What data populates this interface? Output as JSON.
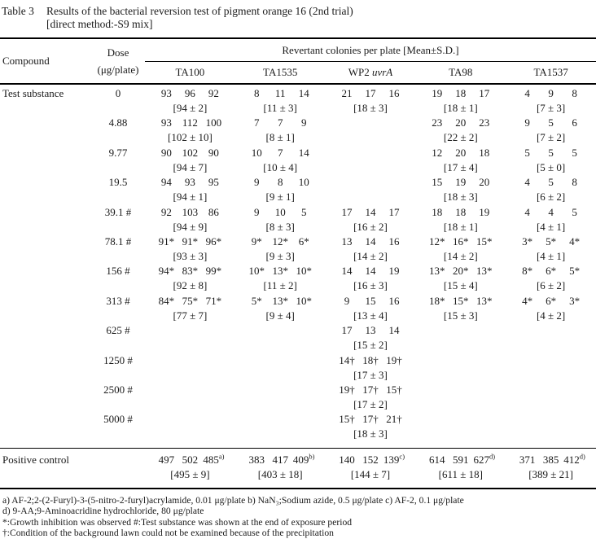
{
  "title": {
    "label": "Table 3",
    "line1": "Results of the bacterial reversion test of pigment orange 16 (2nd trial)",
    "line2": "[direct method:-S9 mix]"
  },
  "table": {
    "compound_header": "Compound",
    "dose_header_line1": "Dose",
    "dose_header_line2": "(μg/plate)",
    "span_header": "Revertant colonies per plate [Mean±S.D.]",
    "strains": [
      {
        "id": "ta100",
        "text": "TA100"
      },
      {
        "id": "ta1535",
        "text": "TA1535"
      },
      {
        "id": "wp2-uvra",
        "text": "WP2 ",
        "italic": "uvrA"
      },
      {
        "id": "ta98",
        "text": "TA98"
      },
      {
        "id": "ta1537",
        "text": "TA1537"
      }
    ],
    "rows": [
      {
        "compound": "Test substance",
        "dose": "0",
        "cells": [
          {
            "values": [
              "93",
              "96",
              "92"
            ],
            "mean": "[94 ± 2]"
          },
          {
            "values": [
              "8",
              "11",
              "14"
            ],
            "mean": "[11 ± 3]"
          },
          {
            "values": [
              "21",
              "17",
              "16"
            ],
            "mean": "[18 ± 3]"
          },
          {
            "values": [
              "19",
              "18",
              "17"
            ],
            "mean": "[18 ± 1]"
          },
          {
            "values": [
              "4",
              "9",
              "8"
            ],
            "mean": "[7 ± 3]"
          }
        ]
      },
      {
        "compound": "",
        "dose": "4.88",
        "cells": [
          {
            "values": [
              "93",
              "112",
              "100"
            ],
            "mean": "[102 ± 10]"
          },
          {
            "values": [
              "7",
              "7",
              "9"
            ],
            "mean": "[8 ± 1]"
          },
          null,
          {
            "values": [
              "23",
              "20",
              "23"
            ],
            "mean": "[22 ± 2]"
          },
          {
            "values": [
              "9",
              "5",
              "6"
            ],
            "mean": "[7 ± 2]"
          }
        ]
      },
      {
        "compound": "",
        "dose": "9.77",
        "cells": [
          {
            "values": [
              "90",
              "102",
              "90"
            ],
            "mean": "[94 ± 7]"
          },
          {
            "values": [
              "10",
              "7",
              "14"
            ],
            "mean": "[10 ± 4]"
          },
          null,
          {
            "values": [
              "12",
              "20",
              "18"
            ],
            "mean": "[17 ± 4]"
          },
          {
            "values": [
              "5",
              "5",
              "5"
            ],
            "mean": "[5 ± 0]"
          }
        ]
      },
      {
        "compound": "",
        "dose": "19.5",
        "cells": [
          {
            "values": [
              "94",
              "93",
              "95"
            ],
            "mean": "[94 ± 1]"
          },
          {
            "values": [
              "9",
              "8",
              "10"
            ],
            "mean": "[9 ± 1]"
          },
          null,
          {
            "values": [
              "15",
              "19",
              "20"
            ],
            "mean": "[18 ± 3]"
          },
          {
            "values": [
              "4",
              "5",
              "8"
            ],
            "mean": "[6 ± 2]"
          }
        ]
      },
      {
        "compound": "",
        "dose": "39.1 #",
        "cells": [
          {
            "values": [
              "92",
              "103",
              "86"
            ],
            "mean": "[94 ± 9]"
          },
          {
            "values": [
              "9",
              "10",
              "5"
            ],
            "mean": "[8 ± 3]"
          },
          {
            "values": [
              "17",
              "14",
              "17"
            ],
            "mean": "[16 ± 2]"
          },
          {
            "values": [
              "18",
              "18",
              "19"
            ],
            "mean": "[18 ± 1]"
          },
          {
            "values": [
              "4",
              "4",
              "5"
            ],
            "mean": "[4 ± 1]"
          }
        ]
      },
      {
        "compound": "",
        "dose": "78.1 #",
        "cells": [
          {
            "values": [
              "91*",
              "91*",
              "96*"
            ],
            "mean": "[93 ± 3]"
          },
          {
            "values": [
              "9*",
              "12*",
              "6*"
            ],
            "mean": "[9 ± 3]"
          },
          {
            "values": [
              "13",
              "14",
              "16"
            ],
            "mean": "[14 ± 2]"
          },
          {
            "values": [
              "12*",
              "16*",
              "15*"
            ],
            "mean": "[14 ± 2]"
          },
          {
            "values": [
              "3*",
              "5*",
              "4*"
            ],
            "mean": "[4 ± 1]"
          }
        ]
      },
      {
        "compound": "",
        "dose": "156 #",
        "cells": [
          {
            "values": [
              "94*",
              "83*",
              "99*"
            ],
            "mean": "[92 ± 8]"
          },
          {
            "values": [
              "10*",
              "13*",
              "10*"
            ],
            "mean": "[11 ± 2]"
          },
          {
            "values": [
              "14",
              "14",
              "19"
            ],
            "mean": "[16 ± 3]"
          },
          {
            "values": [
              "13*",
              "20*",
              "13*"
            ],
            "mean": "[15 ± 4]"
          },
          {
            "values": [
              "8*",
              "6*",
              "5*"
            ],
            "mean": "[6 ± 2]"
          }
        ]
      },
      {
        "compound": "",
        "dose": "313 #",
        "cells": [
          {
            "values": [
              "84*",
              "75*",
              "71*"
            ],
            "mean": "[77 ± 7]"
          },
          {
            "values": [
              "5*",
              "13*",
              "10*"
            ],
            "mean": "[9 ± 4]"
          },
          {
            "values": [
              "9",
              "15",
              "16"
            ],
            "mean": "[13 ± 4]"
          },
          {
            "values": [
              "18*",
              "15*",
              "13*"
            ],
            "mean": "[15 ± 3]"
          },
          {
            "values": [
              "4*",
              "6*",
              "3*"
            ],
            "mean": "[4 ± 2]"
          }
        ]
      },
      {
        "compound": "",
        "dose": "625 #",
        "cells": [
          null,
          null,
          {
            "values": [
              "17",
              "13",
              "14"
            ],
            "mean": "[15 ± 2]"
          },
          null,
          null
        ]
      },
      {
        "compound": "",
        "dose": "1250 #",
        "cells": [
          null,
          null,
          {
            "values": [
              "14†",
              "18†",
              "19†"
            ],
            "mean": "[17 ± 3]"
          },
          null,
          null
        ]
      },
      {
        "compound": "",
        "dose": "2500 #",
        "cells": [
          null,
          null,
          {
            "values": [
              "19†",
              "17†",
              "15†"
            ],
            "mean": "[17 ± 2]"
          },
          null,
          null
        ]
      },
      {
        "compound": "",
        "dose": "5000 #",
        "cells": [
          null,
          null,
          {
            "values": [
              "15†",
              "17†",
              "21†"
            ],
            "mean": "[18 ± 3]"
          },
          null,
          null
        ]
      }
    ],
    "positive_control": {
      "compound": "Positive control",
      "dose": "",
      "cells": [
        {
          "values": [
            "497",
            "502",
            "485^a)"
          ],
          "mean": "[495 ± 9]"
        },
        {
          "values": [
            "383",
            "417",
            "409^b)"
          ],
          "mean": "[403 ± 18]"
        },
        {
          "values": [
            "140",
            "152",
            "139^c)"
          ],
          "mean": "[144 ± 7]"
        },
        {
          "values": [
            "614",
            "591",
            "627^d)"
          ],
          "mean": "[611 ± 18]"
        },
        {
          "values": [
            "371",
            "385",
            "412^d)"
          ],
          "mean": "[389 ± 21]"
        }
      ]
    }
  },
  "footnotes": [
    "a) AF-2;2-(2-Furyl)-3-(5-nitro-2-furyl)acrylamide, 0.01 μg/plate  b) NaN₃;Sodium azide, 0.5 μg/plate  c) AF-2, 0.1 μg/plate",
    "d) 9-AA;9-Aminoacridine hydrochloride, 80 μg/plate",
    "*:Growth inhibition was observed  #:Test substance was shown at the end of exposure period",
    "†:Condition of the background lawn could not be examined because of the precipitation"
  ],
  "colors": {
    "rule": "#000000",
    "text": "#1a1a1a",
    "background": "#ffffff"
  }
}
